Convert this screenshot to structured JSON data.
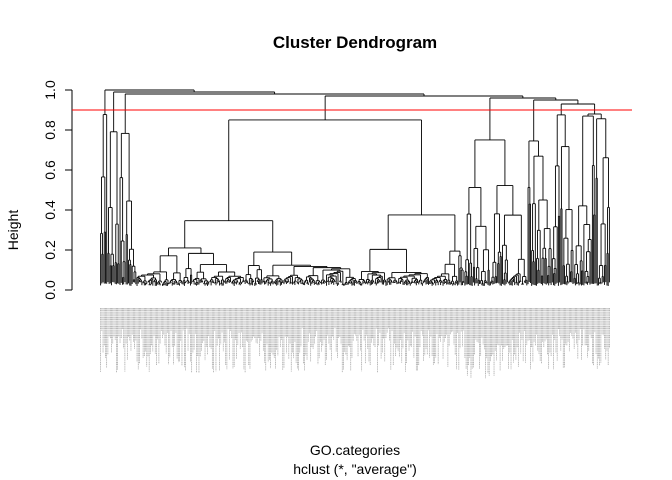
{
  "chart_data": {
    "type": "dendrogram",
    "title": "Cluster Dendrogram",
    "xlabel": "GO.categories",
    "sublabel": "hclust (*, \"average\")",
    "ylabel": "Height",
    "ylim": [
      0,
      1.0
    ],
    "yticks": [
      "0.0",
      "0.2",
      "0.4",
      "0.6",
      "0.8",
      "1.0"
    ],
    "ytick_values": [
      0,
      0.2,
      0.4,
      0.6,
      0.8,
      1.0
    ],
    "cut_line": {
      "y": 0.9,
      "color": "#ff0000"
    },
    "linkage": "average",
    "leaf_count": 420,
    "tree_color": "#000000",
    "leaf_label_color": "#9e9e9e",
    "top_merges": [
      {
        "height": 1.0
      },
      {
        "height": 0.99
      },
      {
        "height": 0.98
      },
      {
        "height": 0.97
      },
      {
        "height": 0.96
      },
      {
        "height": 0.95
      },
      {
        "height": 0.93
      },
      {
        "height": 0.88
      },
      {
        "height": 0.86
      }
    ]
  }
}
